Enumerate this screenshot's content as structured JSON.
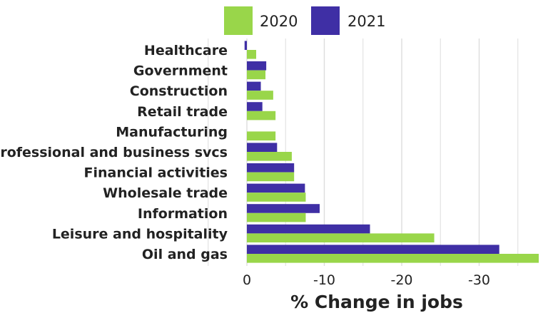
{
  "chart_data": {
    "type": "bar",
    "orientation": "horizontal",
    "categories": [
      "Healthcare",
      "Government",
      "Construction",
      "Retail trade",
      "Manufacturing",
      "Professional and business svcs",
      "Financial activities",
      "Wholesale trade",
      "Information",
      "Leisure and hospitality",
      "Oil and gas"
    ],
    "series": [
      {
        "name": "2021",
        "color": "#3f2fa5",
        "values": [
          0.3,
          -2.5,
          -1.8,
          -2.0,
          0,
          -3.9,
          -6.1,
          -7.5,
          -9.4,
          -15.9,
          -32.6
        ]
      },
      {
        "name": "2020",
        "color": "#99d64a",
        "values": [
          -1.2,
          -2.4,
          -3.4,
          -3.7,
          -3.7,
          -5.8,
          -6.1,
          -7.6,
          -7.6,
          -24.2,
          -37.7
        ]
      }
    ],
    "x_ticks": [
      "0",
      "-10",
      "-20",
      "-30"
    ],
    "x_tick_values": [
      0,
      -10,
      -20,
      -30
    ],
    "xlim": [
      1,
      -38
    ],
    "xlabel": "% Change in jobs",
    "ylabel": "",
    "grid": true,
    "legend_position": "top"
  }
}
